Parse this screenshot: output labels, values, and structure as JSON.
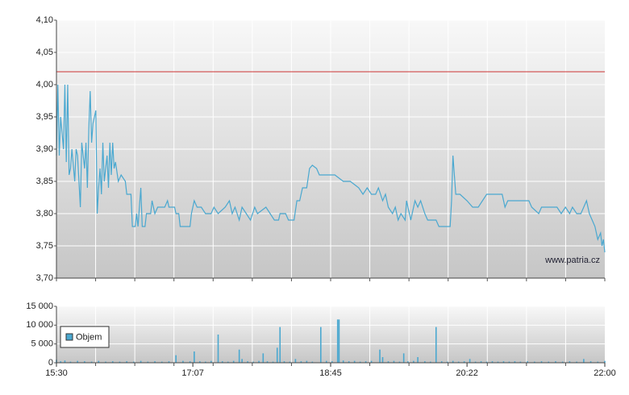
{
  "chart_data": [
    {
      "type": "line",
      "color": "#4aa8d0",
      "grid": true,
      "xgrid_divisions": 14,
      "reference_line": 4.02,
      "reference_color": "#cc3333",
      "annotation": "www.patria.cz",
      "xlim": [
        "15:30",
        "22:00"
      ],
      "ylim": [
        3.7,
        4.1
      ],
      "yticks": [
        {
          "value": 3.7,
          "label": "3,70"
        },
        {
          "value": 3.75,
          "label": "3,75"
        },
        {
          "value": 3.8,
          "label": "3,80"
        },
        {
          "value": 3.85,
          "label": "3,85"
        },
        {
          "value": 3.9,
          "label": "3,90"
        },
        {
          "value": 3.95,
          "label": "3,95"
        },
        {
          "value": 4.0,
          "label": "4,00"
        },
        {
          "value": 4.05,
          "label": "4,05"
        },
        {
          "value": 4.1,
          "label": "4,10"
        }
      ],
      "x": [
        "15:30",
        "15:31",
        "15:32",
        "15:33",
        "15:35",
        "15:36",
        "15:37",
        "15:38",
        "15:39",
        "15:40",
        "15:41",
        "15:43",
        "15:44",
        "15:45",
        "15:46",
        "15:47",
        "15:48",
        "15:50",
        "15:51",
        "15:52",
        "15:53",
        "15:54",
        "15:55",
        "15:56",
        "15:58",
        "15:59",
        "16:00",
        "16:01",
        "16:02",
        "16:03",
        "16:04",
        "16:06",
        "16:07",
        "16:08",
        "16:09",
        "16:10",
        "16:11",
        "16:12",
        "16:14",
        "16:16",
        "16:19",
        "16:20",
        "16:23",
        "16:24",
        "16:26",
        "16:27",
        "16:28",
        "16:30",
        "16:31",
        "16:33",
        "16:34",
        "16:37",
        "16:38",
        "16:40",
        "16:42",
        "16:47",
        "16:49",
        "16:50",
        "16:54",
        "16:55",
        "16:57",
        "16:58",
        "17:05",
        "17:06",
        "17:08",
        "17:10",
        "17:13",
        "17:16",
        "17:20",
        "17:22",
        "17:25",
        "17:30",
        "17:33",
        "17:35",
        "17:37",
        "17:40",
        "17:42",
        "17:45",
        "17:48",
        "17:51",
        "17:53",
        "17:59",
        "18:02",
        "18:05",
        "18:08",
        "18:09",
        "18:13",
        "18:15",
        "18:19",
        "18:21",
        "18:23",
        "18:25",
        "18:28",
        "18:30",
        "18:32",
        "18:35",
        "18:37",
        "18:48",
        "18:51",
        "18:54",
        "18:59",
        "19:02",
        "19:05",
        "19:08",
        "19:11",
        "19:14",
        "19:17",
        "19:19",
        "19:22",
        "19:24",
        "19:26",
        "19:29",
        "19:31",
        "19:33",
        "19:35",
        "19:38",
        "19:39",
        "19:42",
        "19:45",
        "19:47",
        "19:49",
        "19:52",
        "19:54",
        "20:00",
        "20:02",
        "20:10",
        "20:11",
        "20:12",
        "20:14",
        "20:17",
        "20:22",
        "20:26",
        "20:30",
        "20:33",
        "20:36",
        "20:47",
        "20:49",
        "20:51",
        "21:06",
        "21:08",
        "21:13",
        "21:15",
        "21:26",
        "21:29",
        "21:32",
        "21:35",
        "21:37",
        "21:40",
        "21:43",
        "21:45",
        "21:47",
        "21:49",
        "21:51",
        "21:53",
        "21:55",
        "21:57",
        "21:58",
        "21:59",
        "22:00"
      ],
      "values": [
        3.89,
        4.0,
        3.89,
        3.95,
        3.9,
        4.0,
        3.88,
        4.0,
        3.86,
        3.87,
        3.9,
        3.85,
        3.9,
        3.89,
        3.85,
        3.81,
        3.91,
        3.87,
        3.91,
        3.84,
        3.93,
        3.99,
        3.91,
        3.94,
        3.96,
        3.8,
        3.84,
        3.87,
        3.83,
        3.91,
        3.85,
        3.89,
        3.84,
        3.91,
        3.86,
        3.91,
        3.87,
        3.88,
        3.85,
        3.86,
        3.85,
        3.83,
        3.83,
        3.78,
        3.78,
        3.8,
        3.78,
        3.84,
        3.78,
        3.78,
        3.8,
        3.8,
        3.82,
        3.8,
        3.81,
        3.81,
        3.82,
        3.81,
        3.81,
        3.8,
        3.8,
        3.78,
        3.78,
        3.8,
        3.82,
        3.81,
        3.81,
        3.8,
        3.8,
        3.81,
        3.8,
        3.81,
        3.82,
        3.8,
        3.81,
        3.79,
        3.81,
        3.8,
        3.79,
        3.81,
        3.8,
        3.81,
        3.8,
        3.79,
        3.79,
        3.8,
        3.8,
        3.79,
        3.79,
        3.82,
        3.82,
        3.84,
        3.84,
        3.87,
        3.875,
        3.87,
        3.86,
        3.86,
        3.855,
        3.85,
        3.85,
        3.845,
        3.84,
        3.83,
        3.84,
        3.83,
        3.83,
        3.84,
        3.82,
        3.83,
        3.81,
        3.8,
        3.81,
        3.79,
        3.8,
        3.79,
        3.82,
        3.79,
        3.82,
        3.81,
        3.82,
        3.8,
        3.79,
        3.79,
        3.78,
        3.78,
        3.82,
        3.89,
        3.83,
        3.83,
        3.82,
        3.81,
        3.81,
        3.82,
        3.83,
        3.83,
        3.81,
        3.82,
        3.82,
        3.81,
        3.8,
        3.81,
        3.81,
        3.8,
        3.81,
        3.8,
        3.81,
        3.8,
        3.8,
        3.81,
        3.82,
        3.8,
        3.79,
        3.78,
        3.76,
        3.77,
        3.75,
        3.76,
        3.74
      ]
    },
    {
      "type": "bar",
      "grid": true,
      "xgrid_divisions": 14,
      "legend": "left",
      "xlim": [
        "15:30",
        "22:00"
      ],
      "ylim": [
        0,
        15000
      ],
      "xticks": [
        "15:30",
        "17:07",
        "18:45",
        "20:22",
        "22:00"
      ],
      "yticks": [
        0,
        {
          "value": 5000,
          "label": "5 000"
        },
        {
          "value": 10000,
          "label": "10 000"
        },
        {
          "value": 15000,
          "label": "15 000"
        }
      ],
      "x": [
        "15:30",
        "15:33",
        "15:36",
        "15:40",
        "15:45",
        "15:50",
        "15:55",
        "16:00",
        "16:05",
        "16:10",
        "16:15",
        "16:20",
        "16:25",
        "16:30",
        "16:35",
        "16:40",
        "16:45",
        "16:50",
        "16:55",
        "17:00",
        "17:05",
        "17:08",
        "17:12",
        "17:16",
        "17:20",
        "17:25",
        "17:28",
        "17:32",
        "17:36",
        "17:40",
        "17:42",
        "17:46",
        "17:50",
        "17:54",
        "17:57",
        "18:00",
        "18:04",
        "18:07",
        "18:09",
        "18:12",
        "18:16",
        "18:20",
        "18:24",
        "18:28",
        "18:32",
        "18:38",
        "18:42",
        "18:46",
        "18:50",
        "18:51",
        "18:54",
        "18:58",
        "19:02",
        "19:06",
        "19:10",
        "19:14",
        "19:20",
        "19:22",
        "19:26",
        "19:30",
        "19:34",
        "19:37",
        "19:40",
        "19:44",
        "19:47",
        "19:52",
        "19:56",
        "20:00",
        "20:04",
        "20:08",
        "20:12",
        "20:16",
        "20:20",
        "20:24",
        "20:28",
        "20:32",
        "20:36",
        "20:40",
        "20:44",
        "20:48",
        "20:52",
        "20:56",
        "21:00",
        "21:05",
        "21:10",
        "21:15",
        "21:20",
        "21:25",
        "21:30",
        "21:35",
        "21:40",
        "21:45",
        "21:50",
        "21:55",
        "22:00"
      ],
      "series": [
        {
          "name": "Objem",
          "color": "#4aa8d0",
          "values": [
            800,
            400,
            600,
            300,
            500,
            400,
            300,
            500,
            300,
            400,
            300,
            400,
            300,
            500,
            300,
            400,
            300,
            400,
            2000,
            500,
            400,
            3000,
            400,
            300,
            500,
            7500,
            400,
            300,
            500,
            3500,
            1000,
            400,
            300,
            500,
            2500,
            400,
            300,
            4000,
            9500,
            400,
            300,
            1000,
            400,
            500,
            300,
            9500,
            500,
            400,
            11500,
            11500,
            600,
            400,
            500,
            300,
            400,
            500,
            3500,
            1500,
            400,
            500,
            300,
            2500,
            400,
            500,
            1500,
            400,
            300,
            9500,
            400,
            300,
            500,
            300,
            400,
            1000,
            300,
            400,
            300,
            400,
            300,
            400,
            300,
            400,
            300,
            400,
            300,
            400,
            300,
            400,
            300,
            400,
            300,
            1000,
            400,
            300,
            500
          ]
        }
      ]
    }
  ]
}
